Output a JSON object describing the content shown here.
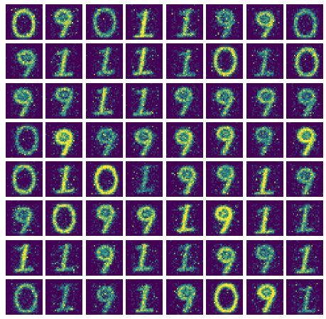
{
  "figure": {
    "rows": 8,
    "cols": 8,
    "tile_resolution": 28,
    "colormap": "viridis",
    "background_color": "#ffffff",
    "colormap_low": "#440154",
    "colormap_mid": "#21918c",
    "colormap_high": "#fde725",
    "seed": 7
  },
  "digits": [
    [
      "0",
      "9",
      "0",
      "1",
      "1",
      "9",
      "9",
      "0"
    ],
    [
      "9",
      "1",
      "1",
      "1",
      "1",
      "0",
      "1",
      "0"
    ],
    [
      "9",
      "9",
      "1",
      "1",
      "9",
      "9",
      "9",
      "9"
    ],
    [
      "0",
      "9",
      "9",
      "9",
      "9",
      "9",
      "9",
      "9"
    ],
    [
      "0",
      "1",
      "0",
      "1",
      "9",
      "9",
      "1",
      "9"
    ],
    [
      "9",
      "0",
      "9",
      "9",
      "1",
      "9",
      "1",
      "1"
    ],
    [
      "1",
      "1",
      "9",
      "1",
      "1",
      "9",
      "9",
      "1"
    ],
    [
      "0",
      "1",
      "9",
      "1",
      "9",
      "0",
      "9",
      "1"
    ]
  ]
}
